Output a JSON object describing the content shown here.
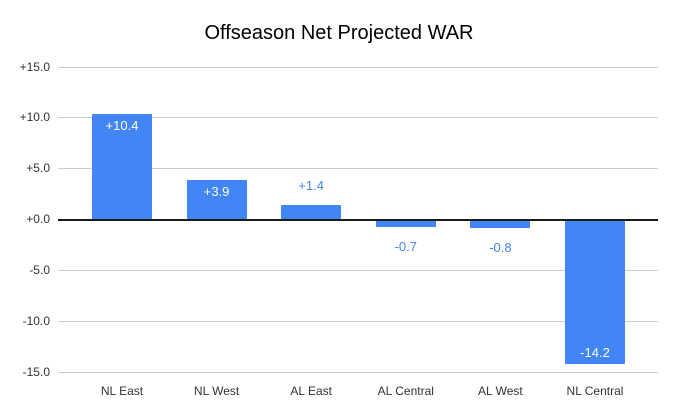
{
  "chart_data": {
    "type": "bar",
    "title": "Offseason Net Projected WAR",
    "categories": [
      "NL East",
      "NL West",
      "AL East",
      "AL Central",
      "AL West",
      "NL Central"
    ],
    "values": [
      10.4,
      3.9,
      1.4,
      -0.7,
      -0.8,
      -14.2
    ],
    "bar_labels": [
      "+10.4",
      "+3.9",
      "+1.4",
      "-0.7",
      "-0.8",
      "-14.2"
    ],
    "yticks": [
      "+15.0",
      "+10.0",
      "+5.0",
      "+0.0",
      "-5.0",
      "-10.0",
      "-15.0"
    ],
    "ylim": [
      -15,
      15
    ],
    "xlabel": "",
    "ylabel": "",
    "grid": true,
    "legend": "none",
    "colors": {
      "bar": "#4285f4",
      "label_inside": "#ffffff",
      "label_outside": "#4285f4",
      "gridline": "#cccccc",
      "baseline": "#1a1a1a",
      "axis_text": "#333333",
      "title_text": "#000000",
      "background": "#ffffff"
    }
  }
}
